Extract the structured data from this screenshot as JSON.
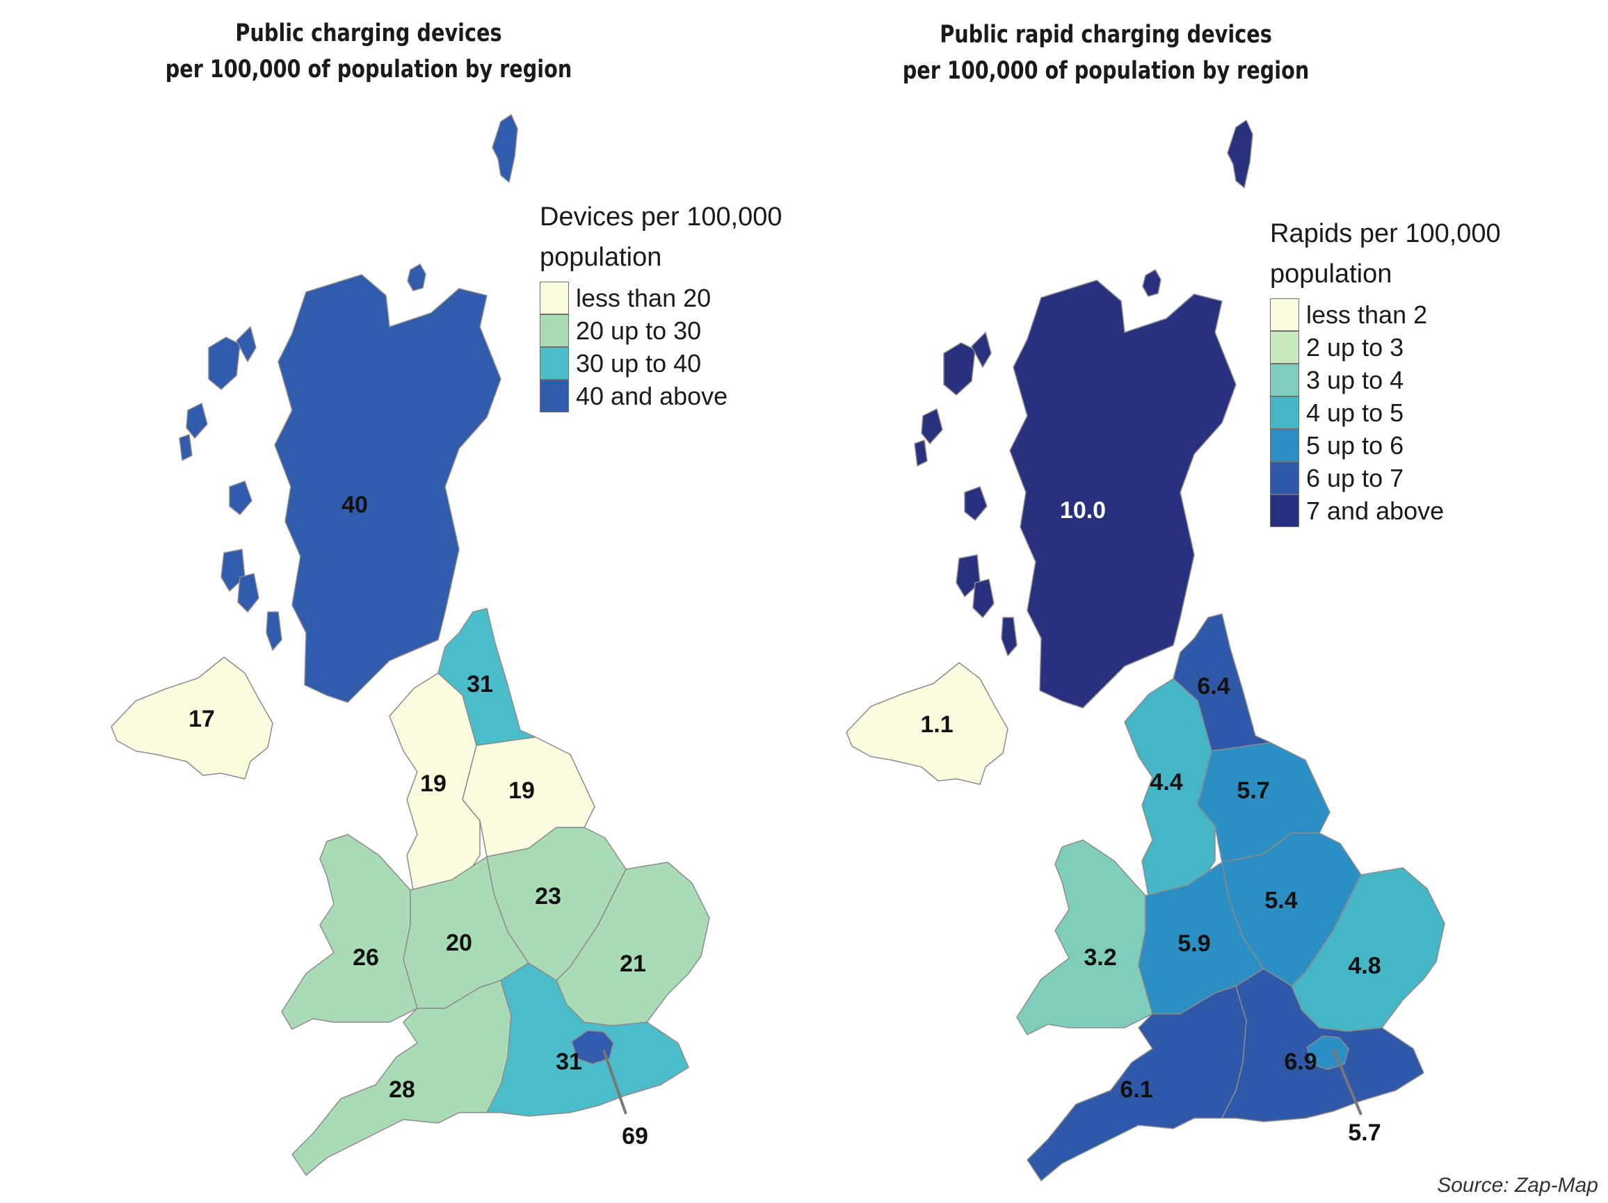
{
  "colors": {
    "left_scale": [
      "#fbfbdf",
      "#a9dbb6",
      "#4bbcc9",
      "#315bac"
    ],
    "right_scale": [
      "#fbfbdf",
      "#c9e8bc",
      "#7fcdbb",
      "#44b6c5",
      "#2c8fc3",
      "#2f58a8",
      "#29317f"
    ],
    "border": "#8c8c8c",
    "leader": "#777777"
  },
  "left_map": {
    "title_line1": "Public charging devices",
    "title_line2": "per 100,000 of population by region",
    "legend_title_line1": "Devices per 100,000",
    "legend_title_line2": "population",
    "legend": [
      {
        "label": "less than 20"
      },
      {
        "label": "20 up to 30"
      },
      {
        "label": "30 up to 40"
      },
      {
        "label": "40 and above"
      }
    ],
    "regions": {
      "scotland": {
        "value": "40",
        "class": 3
      },
      "northern_ireland": {
        "value": "17",
        "class": 0
      },
      "north_east": {
        "value": "31",
        "class": 2
      },
      "north_west": {
        "value": "19",
        "class": 0
      },
      "yorkshire": {
        "value": "19",
        "class": 0
      },
      "wales": {
        "value": "26",
        "class": 1
      },
      "west_midlands": {
        "value": "20",
        "class": 1
      },
      "east_midlands": {
        "value": "23",
        "class": 1
      },
      "east_of_england": {
        "value": "21",
        "class": 1
      },
      "south_west": {
        "value": "28",
        "class": 1
      },
      "south_east": {
        "value": "31",
        "class": 2
      },
      "london": {
        "value": "69",
        "class": 3
      }
    }
  },
  "right_map": {
    "title_line1": "Public rapid charging devices",
    "title_line2": "per 100,000 of population by region",
    "legend_title_line1": "Rapids per 100,000",
    "legend_title_line2": "population",
    "legend": [
      {
        "label": "less than 2"
      },
      {
        "label": "2 up to 3"
      },
      {
        "label": "3 up to 4"
      },
      {
        "label": "4 up to 5"
      },
      {
        "label": "5 up to 6"
      },
      {
        "label": "6 up to 7"
      },
      {
        "label": "7 and above"
      }
    ],
    "regions": {
      "scotland": {
        "value": "10.0",
        "class": 6
      },
      "northern_ireland": {
        "value": "1.1",
        "class": 0
      },
      "north_east": {
        "value": "6.4",
        "class": 5
      },
      "north_west": {
        "value": "4.4",
        "class": 3
      },
      "yorkshire": {
        "value": "5.7",
        "class": 4
      },
      "wales": {
        "value": "3.2",
        "class": 2
      },
      "west_midlands": {
        "value": "5.9",
        "class": 4
      },
      "east_midlands": {
        "value": "5.4",
        "class": 4
      },
      "east_of_england": {
        "value": "4.8",
        "class": 3
      },
      "south_west": {
        "value": "6.1",
        "class": 5
      },
      "south_east": {
        "value": "6.9",
        "class": 5
      },
      "london": {
        "value": "5.7",
        "class": 4
      }
    }
  },
  "source": "Source: Zap-Map"
}
